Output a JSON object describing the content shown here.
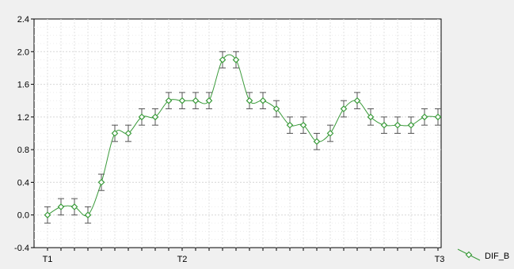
{
  "chart_data": {
    "type": "line",
    "title": "",
    "xlabel": "",
    "ylabel": "",
    "ylim": [
      -0.4,
      2.4
    ],
    "yticks": [
      -0.4,
      0.0,
      0.4,
      0.8,
      1.2,
      1.6,
      2.0,
      2.4
    ],
    "ytick_labels": [
      "-0.4",
      "0.0",
      "0.4",
      "0.8",
      "1.2",
      "1.6",
      "2.0",
      "2.4"
    ],
    "xtick_labels": [
      {
        "label": "T1",
        "index": 0
      },
      {
        "label": "T2",
        "index": 10
      },
      {
        "label": "T3",
        "index": 30
      }
    ],
    "grid": true,
    "legend_position": "right-bottom",
    "series": [
      {
        "name": "DIF_B",
        "color": "#3a9a3a",
        "marker": "diamond",
        "values": [
          0.0,
          0.1,
          0.1,
          0.0,
          0.4,
          1.0,
          1.0,
          1.2,
          1.2,
          1.4,
          1.4,
          1.4,
          1.4,
          1.9,
          1.9,
          1.4,
          1.4,
          1.3,
          1.1,
          1.1,
          0.9,
          1.0,
          1.3,
          1.4,
          1.2,
          1.1,
          1.1,
          1.1,
          1.2,
          1.2
        ],
        "error": 0.1
      }
    ]
  }
}
